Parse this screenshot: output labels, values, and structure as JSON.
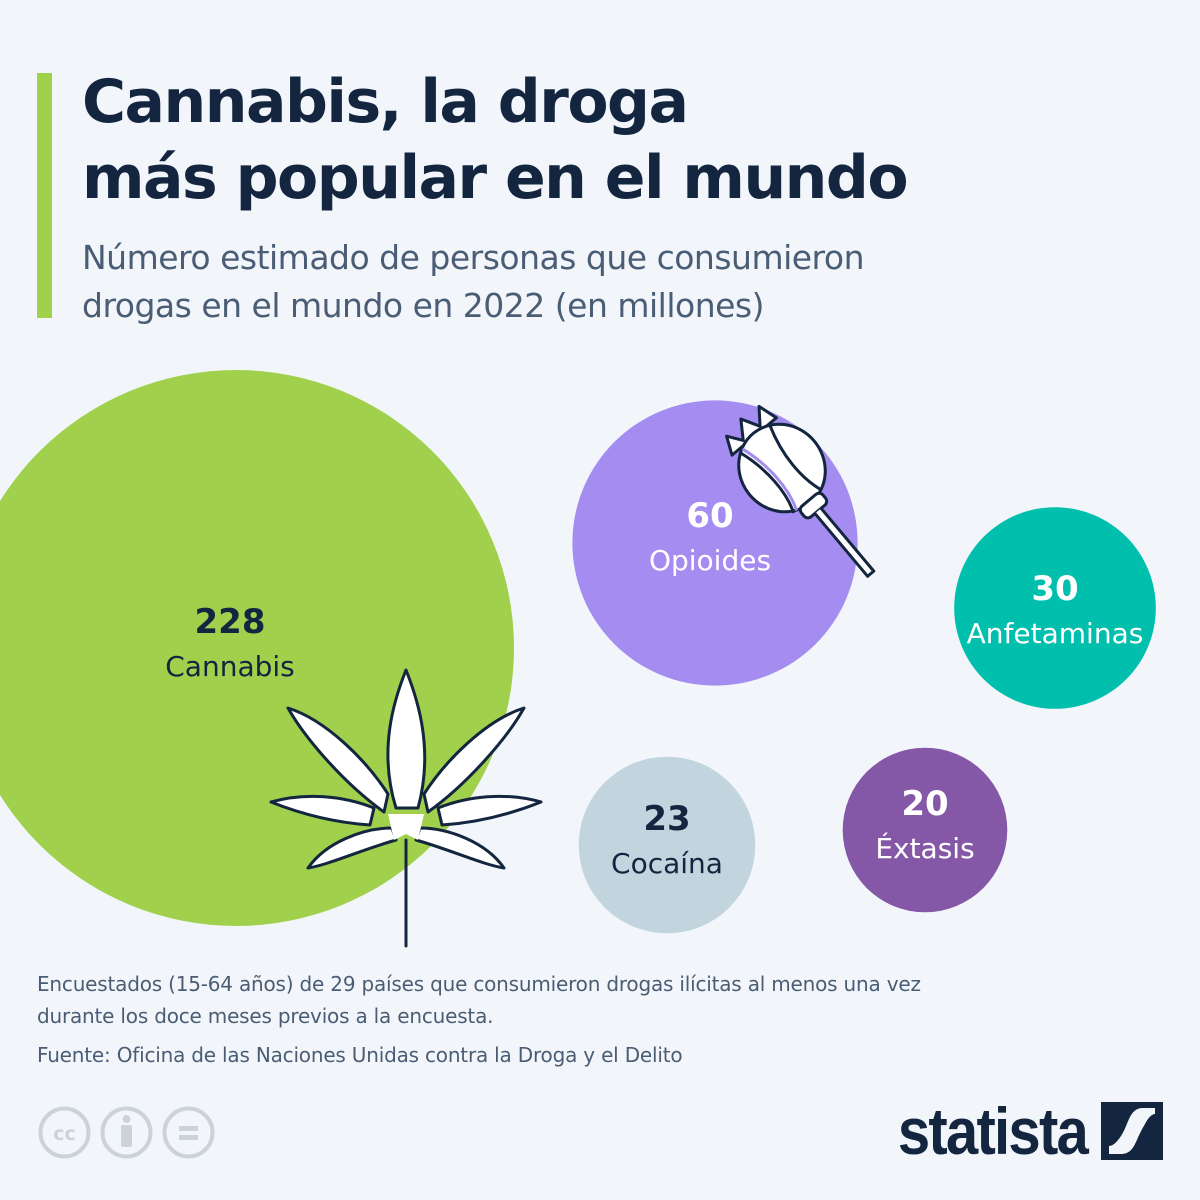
{
  "header": {
    "title_line1": "Cannabis, la droga",
    "title_line2": "más popular en el mundo",
    "subtitle_line1": "Número estimado de personas que consumieron",
    "subtitle_line2": "drogas en el mundo en 2022 (en millones)"
  },
  "chart_data": {
    "type": "bubble",
    "title": "Cannabis, la droga más popular en el mundo",
    "subtitle": "Número estimado de personas que consumieron drogas en el mundo en 2022 (en millones)",
    "unit": "millones",
    "categories": [
      "Cannabis",
      "Opioides",
      "Anfetaminas",
      "Cocaína",
      "Éxtasis"
    ],
    "values": [
      228,
      60,
      30,
      23,
      20
    ],
    "colors": [
      "#a0d04c",
      "#a48cf0",
      "#00bfad",
      "#c2d5de",
      "#8458a6"
    ],
    "label_colors": [
      "#13253f",
      "#ffffff",
      "#ffffff",
      "#13253f",
      "#ffffff"
    ],
    "icons": [
      "cannabis-leaf-icon",
      "poppy-pod-icon",
      null,
      null,
      null
    ]
  },
  "footer": {
    "note_line1": "Encuestados (15-64 años) de 29 países que consumieron drogas ilícitas al menos una vez",
    "note_line2": "durante los doce meses previos a la encuesta.",
    "source": "Fuente: Oficina de las Naciones Unidas contra la Droga y el Delito",
    "logo_text": "statista"
  }
}
